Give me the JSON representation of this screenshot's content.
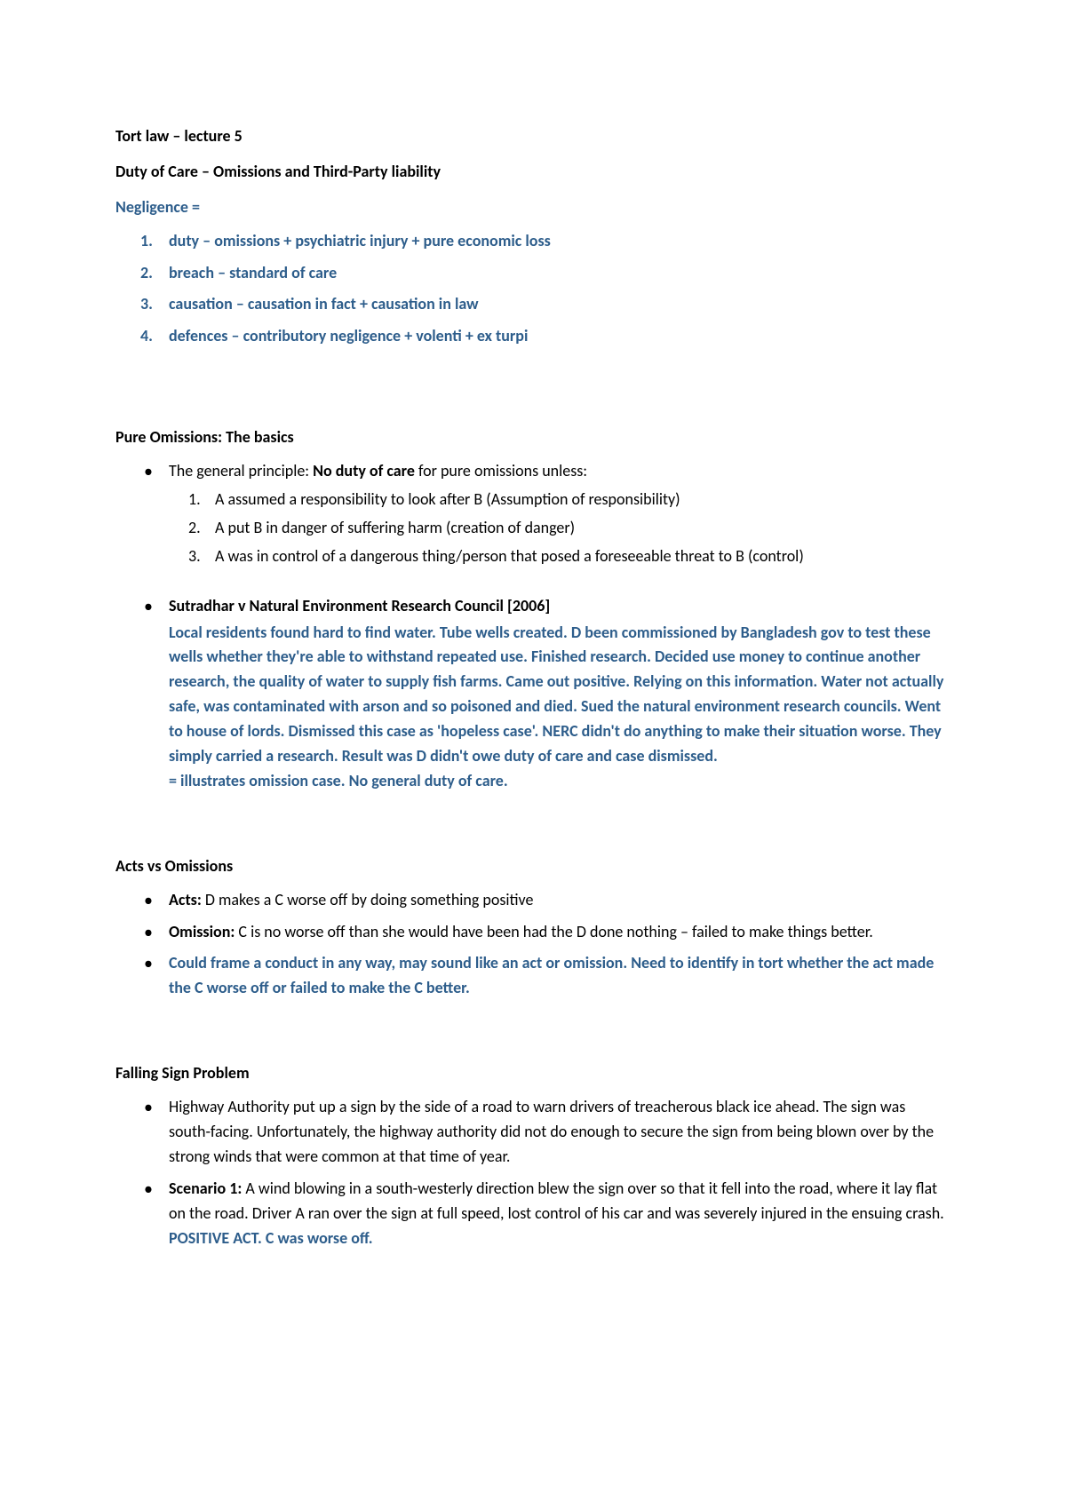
{
  "header": {
    "title": "Tort law – lecture 5",
    "subtitle": "Duty of Care – Omissions and Third-Party liability"
  },
  "negligence_title": "Negligence =",
  "negligence_list": [
    "duty – omissions + psychiatric injury + pure economic loss",
    "breach – standard of care",
    "causation – causation in fact + causation in law",
    "defences – contributory negligence + volenti + ex turpi"
  ],
  "pure_omissions": {
    "title": "Pure Omissions: The basics",
    "principle_prefix": "The general principle: ",
    "principle_bold": "No duty of care",
    "principle_suffix": " for pure omissions unless:",
    "conditions": [
      "A assumed a responsibility to look after B (Assumption of responsibility)",
      "A put B in danger of suffering harm (creation of danger)",
      "A was in control of a dangerous thing/person that posed a foreseeable threat to B (control)"
    ],
    "case_title": "Sutradhar v Natural Environment Research Council [2006]",
    "case_body": "Local residents found hard to find water. Tube wells created. D been commissioned by Bangladesh gov to test these wells whether they're able to withstand repeated use. Finished research. Decided use money to continue another research, the quality of water to supply fish farms. Came out positive. Relying on this information. Water not actually safe, was contaminated with arson and so poisoned and died. Sued the natural environment research councils. Went to house of lords. Dismissed this case as 'hopeless case'. NERC didn't do anything to make their situation worse. They simply carried a research. Result was D didn't owe duty of care and case dismissed.",
    "case_conclusion": "= illustrates omission case. No general duty of care."
  },
  "acts_vs_omissions": {
    "title": "Acts vs Omissions",
    "acts_label": "Acts:",
    "acts_text": " D makes a C worse off by doing something positive",
    "omission_label": "Omission:",
    "omission_text": " C is no worse off than she would have been had the D done nothing – failed to make things better.",
    "note": "Could frame a conduct in any way, may sound like an act or omission. Need to identify in tort whether the act made the C worse off or failed to make the C better."
  },
  "falling_sign": {
    "title": "Falling Sign Problem",
    "intro": "Highway Authority put up a sign by the side of a road to warn drivers of treacherous black ice ahead. The sign was south-facing. Unfortunately, the highway authority did not do enough to secure the sign from being blown over by the strong winds that were common at that time of year.",
    "scenario_label": "Scenario 1:",
    "scenario_text": " A wind blowing in a south-westerly direction blew the sign over so that it fell into the road, where it lay flat on the road. Driver A ran over the sign at full speed, lost control of his car and was severely injured in the ensuing crash. ",
    "scenario_tag": "POSITIVE ACT. C was worse off."
  },
  "colors": {
    "text": "#000000",
    "accent": "#2d5d8b",
    "background": "#ffffff"
  }
}
